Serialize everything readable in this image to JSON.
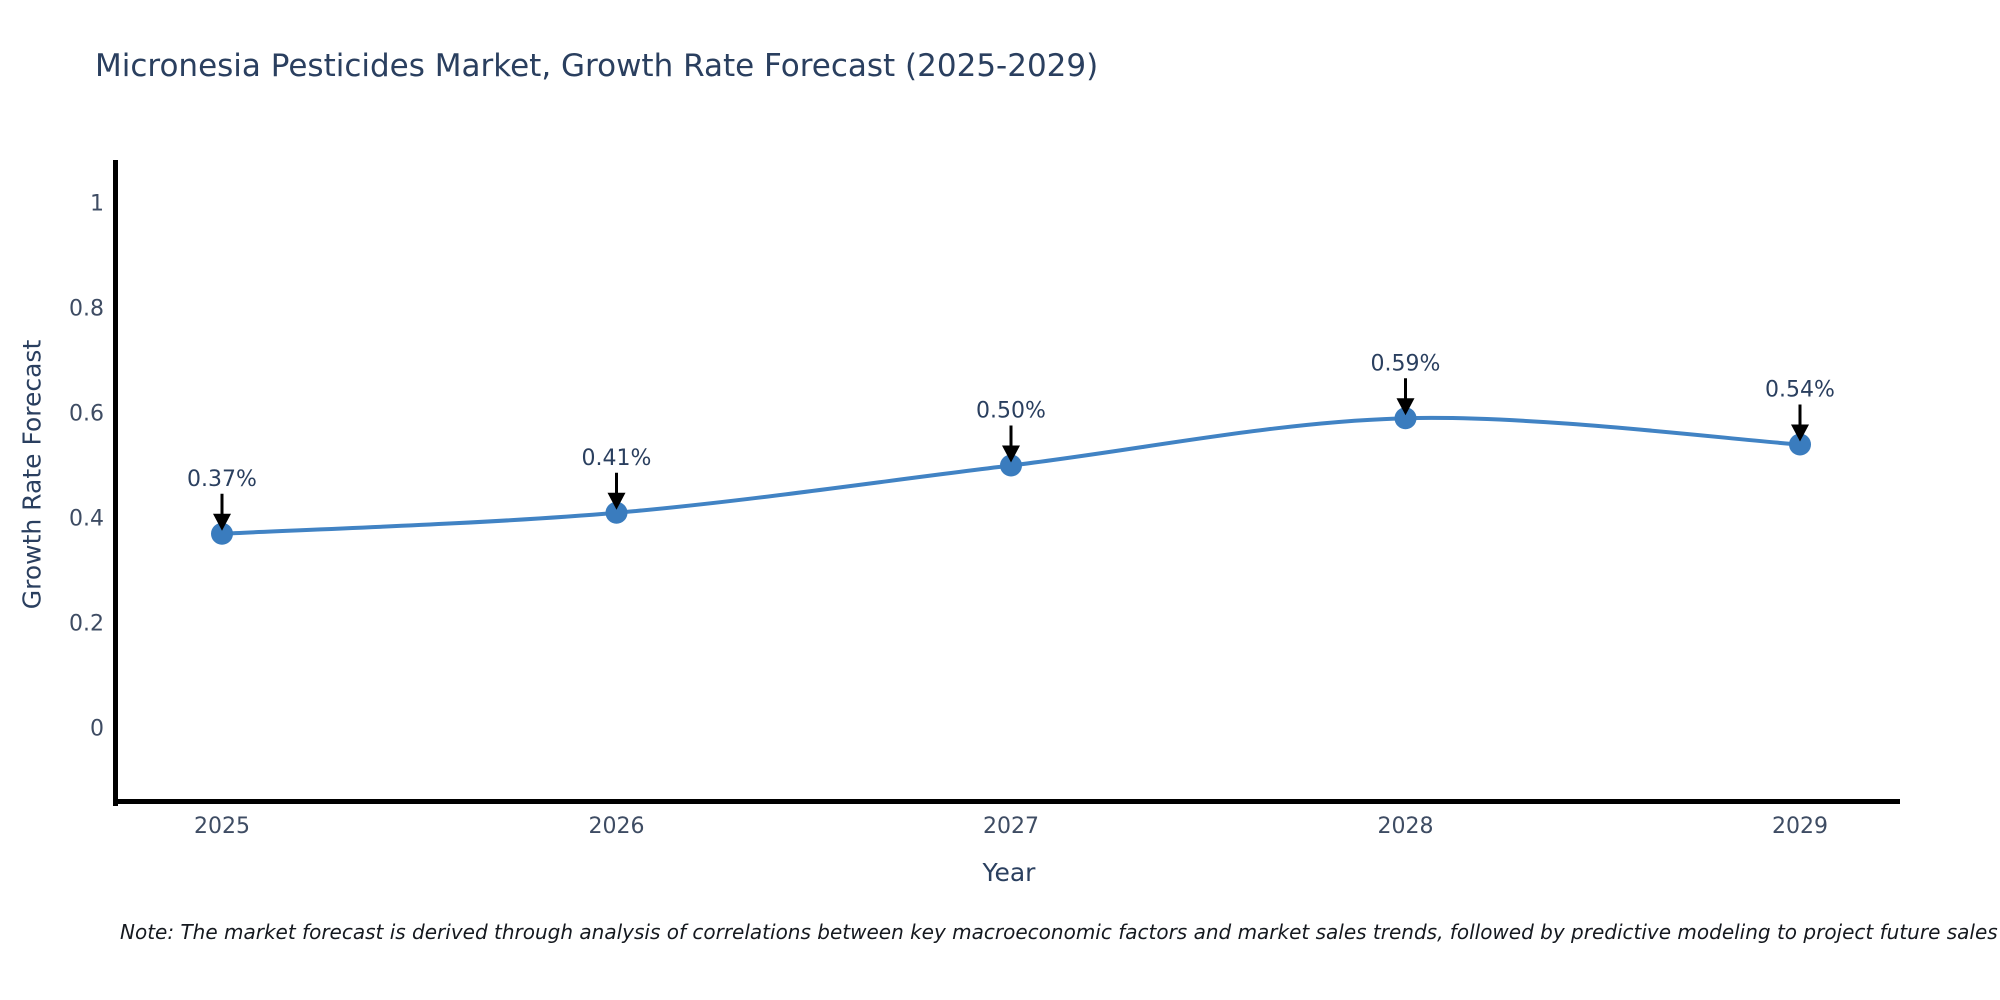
{
  "title": "Micronesia Pesticides Market, Growth Rate Forecast (2025-2029)",
  "footnote": "Note: The market forecast is derived through analysis of correlations between key macroeconomic factors and market sales trends, followed by predictive modeling to project future sales",
  "chart_data": {
    "type": "line",
    "title": "Micronesia Pesticides Market, Growth Rate Forecast (2025-2029)",
    "xlabel": "Year",
    "ylabel": "Growth Rate Forecast",
    "x": [
      2025,
      2026,
      2027,
      2028,
      2029
    ],
    "y": [
      0.37,
      0.41,
      0.5,
      0.59,
      0.54
    ],
    "point_labels": [
      "0.37%",
      "0.41%",
      "0.50%",
      "0.59%",
      "0.54%"
    ],
    "x_tick_labels": [
      "2025",
      "2026",
      "2027",
      "2028",
      "2029"
    ],
    "y_ticks": [
      0,
      0.2,
      0.4,
      0.6,
      0.8,
      1
    ],
    "y_tick_labels": [
      "0",
      "0.2",
      "0.4",
      "0.6",
      "0.8",
      "1"
    ],
    "ylim": [
      -0.14,
      1.08
    ],
    "grid": false,
    "legend_position": "none",
    "smooth_line": true,
    "colors": {
      "line": "#4183c4",
      "marker": "#3a7cbe",
      "axis": "#000000",
      "title_text": "#2a3f5f",
      "tick_text": "#3e4c63",
      "annotation_text": "#2a3f5f",
      "annotation_arrow": "#000000",
      "background": "#ffffff"
    }
  }
}
